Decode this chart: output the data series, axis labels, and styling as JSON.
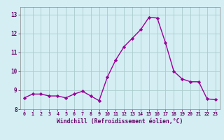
{
  "x": [
    0,
    1,
    2,
    3,
    4,
    5,
    6,
    7,
    8,
    9,
    10,
    11,
    12,
    13,
    14,
    15,
    16,
    17,
    18,
    19,
    20,
    21,
    22,
    23
  ],
  "y": [
    8.6,
    8.8,
    8.8,
    8.7,
    8.7,
    8.6,
    8.8,
    8.95,
    8.7,
    8.45,
    9.7,
    10.6,
    11.3,
    11.75,
    12.2,
    12.85,
    12.82,
    11.5,
    10.0,
    9.6,
    9.45,
    9.45,
    8.55,
    8.5
  ],
  "line_color": "#990099",
  "marker": "D",
  "marker_size": 2.2,
  "background_color": "#d4eef4",
  "grid_color": "#aacccc",
  "xlabel": "Windchill (Refroidissement éolien,°C)",
  "xlabel_color": "#660066",
  "tick_color": "#660066",
  "ylim": [
    8.0,
    13.4
  ],
  "yticks": [
    8,
    9,
    10,
    11,
    12,
    13
  ],
  "xticks": [
    0,
    1,
    2,
    3,
    4,
    5,
    6,
    7,
    8,
    9,
    10,
    11,
    12,
    13,
    14,
    15,
    16,
    17,
    18,
    19,
    20,
    21,
    22,
    23
  ],
  "line_width": 1.0,
  "spine_color": "#888888",
  "xlim_left": -0.5,
  "xlim_right": 23.5
}
